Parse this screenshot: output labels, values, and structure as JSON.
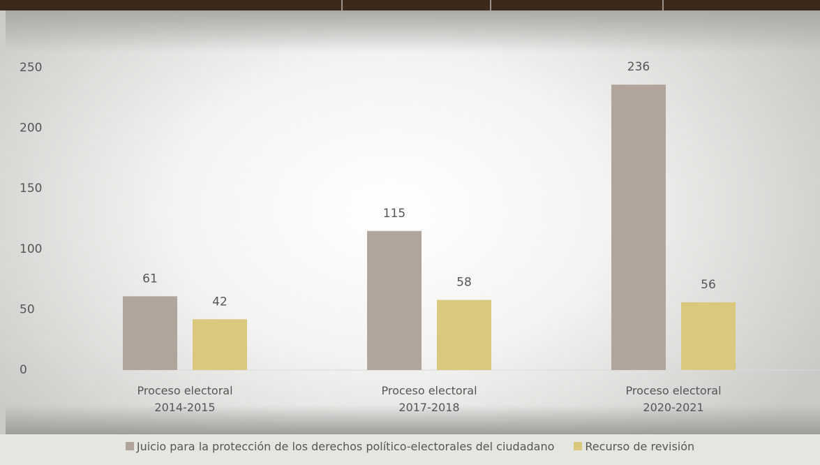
{
  "chart_data": {
    "type": "bar",
    "categories": [
      "Proceso electoral 2014-2015",
      "Proceso electoral 2017-2018",
      "Proceso electoral 2020-2021"
    ],
    "series": [
      {
        "name": "Juicio para la protección de los derechos político-electorales del ciudadano",
        "color": "#b0a49b",
        "values": [
          61,
          115,
          236
        ]
      },
      {
        "name": "Recurso de revisión",
        "color": "#d9c87e",
        "values": [
          42,
          58,
          56
        ]
      }
    ],
    "ylim": [
      0,
      250
    ],
    "yticks": [
      0,
      50,
      100,
      150,
      200,
      250
    ],
    "grid": false,
    "legend": "bottom"
  }
}
